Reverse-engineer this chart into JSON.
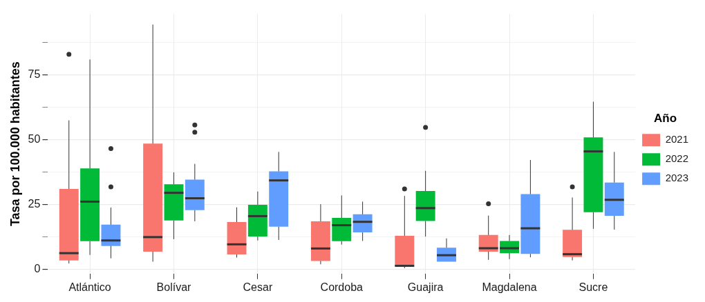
{
  "chart_data": {
    "type": "box",
    "ylabel": "Tasa por 100.000 habitantes",
    "legend_title": "Año",
    "legend": "right",
    "grid": true,
    "categories": [
      "Atlántico",
      "Bolívar",
      "Cesar",
      "Cordoba",
      "Guajira",
      "Magdalena",
      "Sucre"
    ],
    "ylim": [
      -1.7,
      98.5
    ],
    "yticks": [
      0,
      {
        "value": 12.5,
        "label": null
      },
      25,
      {
        "value": 37.5,
        "label": null
      },
      50,
      {
        "value": 62.5,
        "label": null
      },
      75,
      {
        "value": 87.5,
        "label": null
      }
    ],
    "series": [
      {
        "name": "2021",
        "color": "#f8766d",
        "boxes": [
          {
            "low": 2.2,
            "q1": 3.4,
            "median": 6.2,
            "q3": 31,
            "high": 57.5,
            "outliers": [
              83
            ]
          },
          {
            "low": 2.9,
            "q1": 6.8,
            "median": 12.4,
            "q3": 48.5,
            "high": 94.5
          },
          {
            "low": 4.5,
            "q1": 5.7,
            "median": 9.6,
            "q3": 18.2,
            "high": 23.9
          },
          {
            "low": 1.9,
            "q1": 3.2,
            "median": 8,
            "q3": 18.5,
            "high": 25.1
          },
          {
            "low": 0.4,
            "q1": 1.1,
            "median": 1.3,
            "q3": 12.9,
            "high": 28.3,
            "outliers": [
              31
            ]
          },
          {
            "low": 3.6,
            "q1": 6.8,
            "median": 8.1,
            "q3": 13.2,
            "high": 20.7,
            "outliers": [
              25.3
            ]
          },
          {
            "low": 3.4,
            "q1": 4.7,
            "median": 5.8,
            "q3": 15.2,
            "high": 27.7,
            "outliers": [
              31.8
            ]
          }
        ]
      },
      {
        "name": "2022",
        "color": "#00ba38",
        "boxes": [
          {
            "low": 5.5,
            "q1": 10.8,
            "median": 26.1,
            "q3": 38.9,
            "high": 81
          },
          {
            "low": 11.6,
            "q1": 18.8,
            "median": 29.5,
            "q3": 32.8,
            "high": 37.4
          },
          {
            "low": 11.1,
            "q1": 12.6,
            "median": 20.5,
            "q3": 24.9,
            "high": 30
          },
          {
            "low": 9.5,
            "q1": 10.8,
            "median": 17,
            "q3": 19.8,
            "high": 28.5
          },
          {
            "low": 12.6,
            "q1": 18.6,
            "median": 23.6,
            "q3": 30.2,
            "high": 38,
            "outliers": [
              54.8
            ]
          },
          {
            "low": 3.9,
            "q1": 6.2,
            "median": 8.1,
            "q3": 10.9,
            "high": 13.2
          },
          {
            "low": 15.6,
            "q1": 22,
            "median": 45.5,
            "q3": 50.9,
            "high": 64.7
          }
        ]
      },
      {
        "name": "2023",
        "color": "#619cff",
        "boxes": [
          {
            "low": 4.2,
            "q1": 9,
            "median": 11.1,
            "q3": 17.2,
            "high": 23.8,
            "outliers": [
              31.8,
              46.6
            ]
          },
          {
            "low": 18.5,
            "q1": 22.8,
            "median": 27.4,
            "q3": 34.6,
            "high": 40.7,
            "outliers": [
              52.9,
              55.7
            ]
          },
          {
            "low": 11.3,
            "q1": 16.4,
            "median": 34.3,
            "q3": 37.8,
            "high": 45.3
          },
          {
            "low": 10.9,
            "q1": 14.2,
            "median": 18.3,
            "q3": 21.2,
            "high": 26.1
          },
          {
            "low": 2.9,
            "q1": 2.9,
            "median": 5.4,
            "q3": 8.3,
            "high": 11.9
          },
          {
            "low": 4.6,
            "q1": 5.9,
            "median": 15.8,
            "q3": 29,
            "high": 42.2
          },
          {
            "low": 15.3,
            "q1": 20.6,
            "median": 26.8,
            "q3": 33.5,
            "high": 45.3
          }
        ]
      }
    ]
  }
}
